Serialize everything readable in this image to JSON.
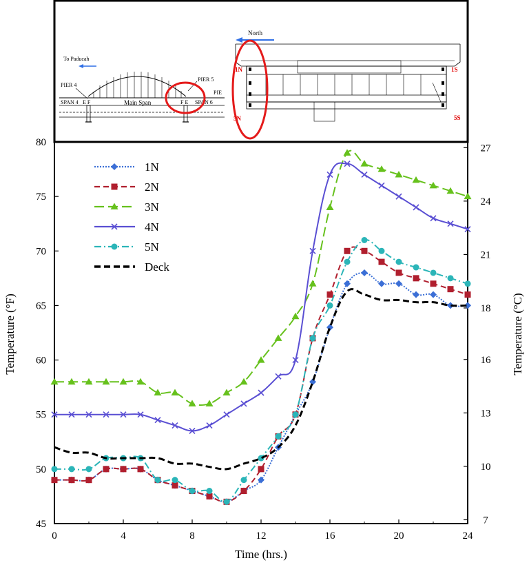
{
  "diagram": {
    "to_paducah": "To Paducah",
    "north": "North",
    "pier4": "PIER 4",
    "pier5": "PIER 5",
    "pier6": "PIE",
    "span4": "SPAN 4",
    "span6": "SPAN 6",
    "main_span": "Main Span",
    "ef": "E F",
    "fe": "F E",
    "g1n": "1N",
    "g5n": "5N",
    "g1s": "1S",
    "g5s": "5S",
    "colors": {
      "arrow": "#2f6fe6",
      "circle": "#e41a1a"
    }
  },
  "chart_data": {
    "type": "line",
    "xlabel": "Time (hrs.)",
    "ylabel": "Temperature (°F)",
    "ylabel_right": "Temperature (°C)",
    "xlim": [
      0,
      24
    ],
    "ylim": [
      45,
      80
    ],
    "ylim_right": [
      7,
      27
    ],
    "xticks": [
      "0",
      "4",
      "8",
      "12",
      "16",
      "20",
      "24"
    ],
    "yticks": [
      "45",
      "50",
      "55",
      "60",
      "65",
      "70",
      "75",
      "80"
    ],
    "yticks_right": [
      "7",
      "10",
      "13",
      "16",
      "18",
      "21",
      "24",
      "27"
    ],
    "yticks_right_values": [
      7.2,
      10,
      12.8,
      15.6,
      18.3,
      21.1,
      23.9,
      26.7
    ],
    "grid": false,
    "legend_position": "top-left",
    "series": [
      {
        "name": "1N",
        "color": "#3b6fd6",
        "dash": "dotted",
        "marker": "diamond",
        "x": [
          0,
          1,
          2,
          3,
          4,
          5,
          6,
          7,
          8,
          9,
          10,
          11,
          12,
          13,
          14,
          15,
          16,
          17,
          18,
          19,
          20,
          21,
          22,
          23,
          24
        ],
        "y": [
          49,
          49,
          49,
          50,
          50,
          50,
          49,
          48.5,
          48,
          47.5,
          47,
          48,
          49,
          52,
          55,
          58,
          63,
          67,
          68,
          67,
          67,
          66,
          66,
          65,
          65
        ]
      },
      {
        "name": "2N",
        "color": "#b01f2e",
        "dash": "dashed",
        "marker": "square",
        "x": [
          0,
          1,
          2,
          3,
          4,
          5,
          6,
          7,
          8,
          9,
          10,
          11,
          12,
          13,
          14,
          15,
          16,
          17,
          18,
          19,
          20,
          21,
          22,
          23,
          24
        ],
        "y": [
          49,
          49,
          49,
          50,
          50,
          50,
          49,
          48.5,
          48,
          47.5,
          47,
          48,
          50,
          53,
          55,
          62,
          66,
          70,
          70,
          69,
          68,
          67.5,
          67,
          66.5,
          66
        ]
      },
      {
        "name": "3N",
        "color": "#66c11c",
        "dash": "longdash",
        "marker": "triangle",
        "x": [
          0,
          1,
          2,
          3,
          4,
          5,
          6,
          7,
          8,
          9,
          10,
          11,
          12,
          13,
          14,
          15,
          16,
          17,
          18,
          19,
          20,
          21,
          22,
          23,
          24
        ],
        "y": [
          58,
          58,
          58,
          58,
          58,
          58,
          57,
          57,
          56,
          56,
          57,
          58,
          60,
          62,
          64,
          67,
          74,
          79,
          78,
          77.5,
          77,
          76.5,
          76,
          75.5,
          75
        ]
      },
      {
        "name": "4N",
        "color": "#5a4fd3",
        "dash": "solid",
        "marker": "x",
        "x": [
          0,
          1,
          2,
          3,
          4,
          5,
          6,
          7,
          8,
          9,
          10,
          11,
          12,
          13,
          14,
          15,
          16,
          17,
          18,
          19,
          20,
          21,
          22,
          23,
          24
        ],
        "y": [
          55,
          55,
          55,
          55,
          55,
          55,
          54.5,
          54,
          53.5,
          54,
          55,
          56,
          57,
          58.5,
          60,
          70,
          77,
          78,
          77,
          76,
          75,
          74,
          73,
          72.5,
          72
        ]
      },
      {
        "name": "5N",
        "color": "#2bb5b8",
        "dash": "dashdot",
        "marker": "circle",
        "x": [
          0,
          1,
          2,
          3,
          4,
          5,
          6,
          7,
          8,
          9,
          10,
          11,
          12,
          13,
          14,
          15,
          16,
          17,
          18,
          19,
          20,
          21,
          22,
          23,
          24
        ],
        "y": [
          50,
          50,
          50,
          51,
          51,
          51,
          49,
          49,
          48,
          48,
          47,
          49,
          51,
          53,
          55,
          62,
          65,
          69,
          71,
          70,
          69,
          68.5,
          68,
          67.5,
          67
        ]
      },
      {
        "name": "Deck",
        "color": "#000000",
        "dash": "heavydash",
        "marker": "none",
        "x": [
          0,
          1,
          2,
          3,
          4,
          5,
          6,
          7,
          8,
          9,
          10,
          11,
          12,
          13,
          14,
          15,
          16,
          17,
          18,
          19,
          20,
          21,
          22,
          23,
          24
        ],
        "y": [
          52,
          51.5,
          51.5,
          51,
          51,
          51,
          51,
          50.5,
          50.5,
          50.2,
          50,
          50.5,
          51,
          52,
          54,
          58,
          63,
          66.3,
          66,
          65.5,
          65.5,
          65.3,
          65.3,
          65,
          65
        ]
      }
    ]
  }
}
